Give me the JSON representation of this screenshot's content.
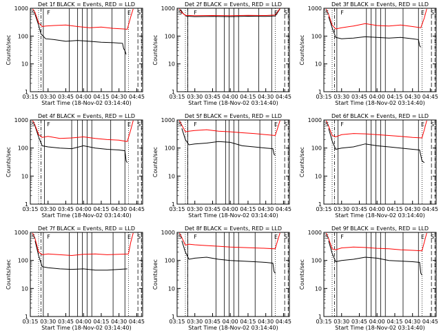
{
  "chart_data": [
    {
      "type": "line",
      "title": "Det 1f BLACK = Events, RED = LLD",
      "xlabel": "Start Time (18-Nov-02 03:14:40)",
      "ylabel": "Counts/sec",
      "y_scale": "log",
      "ylim": [
        1,
        1000
      ],
      "yticks": [
        "1",
        "10",
        "100",
        "1000"
      ],
      "xlim": [
        "03:15",
        "04:50"
      ],
      "xticks": [
        "03:15",
        "03:30",
        "03:45",
        "04:00",
        "04:15",
        "04:30",
        "04:45"
      ],
      "markers": [
        "S",
        "F",
        "E",
        "S"
      ],
      "series": [
        {
          "color": "#000000",
          "x": [
            "03:19",
            "03:22",
            "03:24",
            "03:28",
            "03:35",
            "03:45",
            "03:55",
            "04:05",
            "04:15",
            "04:25",
            "04:33",
            "04:34",
            "04:35",
            "04:36"
          ],
          "y": [
            600,
            250,
            120,
            80,
            75,
            65,
            70,
            65,
            60,
            58,
            55,
            35,
            30,
            22
          ]
        },
        {
          "color": "#ff0000",
          "x": [
            "03:17",
            "03:19",
            "03:22",
            "03:25",
            "03:28",
            "03:35",
            "03:45",
            "03:55",
            "04:05",
            "04:15",
            "04:25",
            "04:34",
            "04:37",
            "04:40",
            "04:42"
          ],
          "y": [
            950,
            700,
            300,
            220,
            230,
            240,
            250,
            220,
            200,
            210,
            190,
            180,
            175,
            500,
            950
          ]
        }
      ]
    },
    {
      "type": "line",
      "title": "Det 2f BLACK = Events, RED = LLD",
      "xlabel": "Start Time (18-Nov-02 03:14:40)",
      "ylabel": "Counts/sec",
      "y_scale": "log",
      "ylim": [
        1,
        1000
      ],
      "yticks": [
        "1",
        "10",
        "100",
        "1000"
      ],
      "xlim": [
        "03:15",
        "04:50"
      ],
      "xticks": [
        "03:15",
        "03:30",
        "03:45",
        "04:00",
        "04:15",
        "04:30",
        "04:45"
      ],
      "markers": [
        "S",
        "F",
        "E",
        "S"
      ],
      "series": [
        {
          "color": "#000000",
          "x": [
            "03:18",
            "03:20",
            "03:23",
            "03:30",
            "03:45",
            "04:00",
            "04:15",
            "04:30",
            "04:38",
            "04:40",
            "04:42"
          ],
          "y": [
            900,
            650,
            520,
            500,
            510,
            500,
            520,
            510,
            530,
            700,
            950
          ]
        },
        {
          "color": "#ff0000",
          "x": [
            "03:17",
            "03:19",
            "03:22",
            "03:30",
            "03:45",
            "04:00",
            "04:15",
            "04:30",
            "04:38",
            "04:40",
            "04:42"
          ],
          "y": [
            950,
            700,
            560,
            540,
            550,
            540,
            560,
            550,
            570,
            750,
            980
          ]
        }
      ]
    },
    {
      "type": "line",
      "title": "Det 3f BLACK = Events, RED = LLD",
      "xlabel": "Start Time (18-Nov-02 03:14:40)",
      "ylabel": "Counts/sec",
      "y_scale": "log",
      "ylim": [
        1,
        1000
      ],
      "yticks": [
        "1",
        "10",
        "100",
        "1000"
      ],
      "xlim": [
        "03:15",
        "04:50"
      ],
      "xticks": [
        "03:15",
        "03:30",
        "03:45",
        "04:00",
        "04:15",
        "04:30",
        "04:45"
      ],
      "markers": [
        "S",
        "F",
        "E",
        "S"
      ],
      "series": [
        {
          "color": "#000000",
          "x": [
            "03:19",
            "03:22",
            "03:25",
            "03:30",
            "03:40",
            "03:50",
            "04:00",
            "04:10",
            "04:20",
            "04:30",
            "04:35",
            "04:36",
            "04:37"
          ],
          "y": [
            500,
            200,
            90,
            80,
            85,
            95,
            90,
            85,
            90,
            80,
            75,
            45,
            40
          ]
        },
        {
          "color": "#ff0000",
          "x": [
            "03:17",
            "03:19",
            "03:22",
            "03:25",
            "03:30",
            "03:40",
            "03:50",
            "04:00",
            "04:10",
            "04:20",
            "04:30",
            "04:37",
            "04:40",
            "04:42"
          ],
          "y": [
            950,
            600,
            250,
            180,
            200,
            230,
            280,
            240,
            230,
            250,
            220,
            200,
            450,
            950
          ]
        }
      ]
    },
    {
      "type": "line",
      "title": "Det 4f BLACK = Events, RED = LLD",
      "xlabel": "Start Time (18-Nov-02 03:14:40)",
      "ylabel": "Counts/sec",
      "y_scale": "log",
      "ylim": [
        1,
        1000
      ],
      "yticks": [
        "1",
        "10",
        "100",
        "1000"
      ],
      "xlim": [
        "03:15",
        "04:50"
      ],
      "xticks": [
        "03:15",
        "03:30",
        "03:45",
        "04:00",
        "04:15",
        "04:30",
        "04:45"
      ],
      "markers": [
        "S",
        "F",
        "E",
        "S"
      ],
      "series": [
        {
          "color": "#000000",
          "x": [
            "03:19",
            "03:22",
            "03:25",
            "03:30",
            "03:40",
            "03:50",
            "04:00",
            "04:10",
            "04:20",
            "04:30",
            "04:35",
            "04:36",
            "04:37"
          ],
          "y": [
            600,
            250,
            120,
            110,
            100,
            95,
            120,
            100,
            90,
            85,
            80,
            35,
            30
          ]
        },
        {
          "color": "#ff0000",
          "x": [
            "03:17",
            "03:19",
            "03:22",
            "03:25",
            "03:30",
            "03:40",
            "03:50",
            "04:00",
            "04:10",
            "04:20",
            "04:30",
            "04:37",
            "04:40",
            "04:42"
          ],
          "y": [
            950,
            650,
            300,
            240,
            260,
            220,
            230,
            250,
            220,
            200,
            190,
            170,
            450,
            950
          ]
        }
      ]
    },
    {
      "type": "line",
      "title": "Det 5f BLACK = Events, RED = LLD",
      "xlabel": "Start Time (18-Nov-02 03:14:40)",
      "ylabel": "Counts/sec",
      "y_scale": "log",
      "ylim": [
        1,
        1000
      ],
      "yticks": [
        "1",
        "10",
        "100",
        "1000"
      ],
      "xlim": [
        "03:15",
        "04:50"
      ],
      "xticks": [
        "03:15",
        "03:30",
        "03:45",
        "04:00",
        "04:15",
        "04:30",
        "04:45"
      ],
      "markers": [
        "S",
        "F",
        "E",
        "S"
      ],
      "series": [
        {
          "color": "#000000",
          "x": [
            "03:19",
            "03:22",
            "03:25",
            "03:30",
            "03:40",
            "03:50",
            "04:00",
            "04:10",
            "04:20",
            "04:30",
            "04:36",
            "04:37",
            "04:38"
          ],
          "y": [
            500,
            200,
            130,
            140,
            150,
            170,
            160,
            120,
            110,
            100,
            95,
            60,
            55
          ]
        },
        {
          "color": "#ff0000",
          "x": [
            "03:17",
            "03:19",
            "03:22",
            "03:25",
            "03:30",
            "03:40",
            "03:50",
            "04:00",
            "04:10",
            "04:20",
            "04:30",
            "04:38",
            "04:40",
            "04:42"
          ],
          "y": [
            950,
            650,
            380,
            400,
            420,
            450,
            400,
            380,
            350,
            330,
            300,
            280,
            500,
            950
          ]
        }
      ]
    },
    {
      "type": "line",
      "title": "Det 6f BLACK = Events, RED = LLD",
      "xlabel": "Start Time (18-Nov-02 03:14:40)",
      "ylabel": "Counts/sec",
      "y_scale": "log",
      "ylim": [
        1,
        1000
      ],
      "yticks": [
        "1",
        "10",
        "100",
        "1000"
      ],
      "xlim": [
        "03:15",
        "04:50"
      ],
      "xticks": [
        "03:15",
        "03:30",
        "03:45",
        "04:00",
        "04:15",
        "04:30",
        "04:45"
      ],
      "markers": [
        "S",
        "F",
        "E",
        "S"
      ],
      "series": [
        {
          "color": "#000000",
          "x": [
            "03:19",
            "03:22",
            "03:25",
            "03:30",
            "03:40",
            "03:50",
            "04:00",
            "04:10",
            "04:20",
            "04:30",
            "04:36",
            "04:38",
            "04:40"
          ],
          "y": [
            500,
            180,
            90,
            100,
            110,
            140,
            120,
            110,
            100,
            90,
            85,
            35,
            30
          ]
        },
        {
          "color": "#ff0000",
          "x": [
            "03:17",
            "03:19",
            "03:22",
            "03:25",
            "03:30",
            "03:40",
            "03:50",
            "04:00",
            "04:10",
            "04:20",
            "04:30",
            "04:38",
            "04:40",
            "04:42"
          ],
          "y": [
            950,
            600,
            280,
            250,
            300,
            330,
            320,
            300,
            280,
            260,
            240,
            230,
            450,
            950
          ]
        }
      ]
    },
    {
      "type": "line",
      "title": "Det 7f BLACK = Events, RED = LLD",
      "xlabel": "Start Time (18-Nov-02 03:14:40)",
      "ylabel": "Counts/sec",
      "y_scale": "log",
      "ylim": [
        1,
        1000
      ],
      "yticks": [
        "1",
        "10",
        "100",
        "1000"
      ],
      "xlim": [
        "03:15",
        "04:50"
      ],
      "xticks": [
        "03:15",
        "03:30",
        "03:45",
        "04:00",
        "04:15",
        "04:30",
        "04:45"
      ],
      "markers": [
        "S",
        "F",
        "E",
        "S"
      ],
      "series": [
        {
          "color": "#000000",
          "x": [
            "03:19",
            "03:22",
            "03:25",
            "03:30",
            "03:40",
            "03:50",
            "04:00",
            "04:10",
            "04:20",
            "04:30",
            "04:37"
          ],
          "y": [
            500,
            150,
            60,
            55,
            50,
            48,
            50,
            45,
            45,
            48,
            50
          ]
        },
        {
          "color": "#ff0000",
          "x": [
            "03:17",
            "03:19",
            "03:22",
            "03:25",
            "03:30",
            "03:40",
            "03:50",
            "04:00",
            "04:10",
            "04:20",
            "04:30",
            "04:38",
            "04:40",
            "04:42"
          ],
          "y": [
            950,
            600,
            200,
            160,
            170,
            160,
            150,
            165,
            170,
            160,
            165,
            170,
            450,
            950
          ]
        }
      ]
    },
    {
      "type": "line",
      "title": "Det 8f BLACK = Events, RED = LLD",
      "xlabel": "Start Time (18-Nov-02 03:14:40)",
      "ylabel": "Counts/sec",
      "y_scale": "log",
      "ylim": [
        1,
        1000
      ],
      "yticks": [
        "1",
        "10",
        "100",
        "1000"
      ],
      "xlim": [
        "03:15",
        "04:50"
      ],
      "xticks": [
        "03:15",
        "03:30",
        "03:45",
        "04:00",
        "04:15",
        "04:30",
        "04:45"
      ],
      "markers": [
        "S",
        "F",
        "E",
        "S"
      ],
      "series": [
        {
          "color": "#000000",
          "x": [
            "03:19",
            "03:22",
            "03:25",
            "03:30",
            "03:40",
            "03:50",
            "04:00",
            "04:10",
            "04:20",
            "04:30",
            "04:36",
            "04:37",
            "04:38"
          ],
          "y": [
            500,
            200,
            110,
            120,
            130,
            110,
            100,
            95,
            90,
            85,
            80,
            40,
            35
          ]
        },
        {
          "color": "#ff0000",
          "x": [
            "03:17",
            "03:19",
            "03:22",
            "03:25",
            "03:30",
            "03:40",
            "03:50",
            "04:00",
            "04:10",
            "04:20",
            "04:30",
            "04:38",
            "04:40",
            "04:42"
          ],
          "y": [
            950,
            650,
            350,
            380,
            360,
            340,
            320,
            300,
            290,
            280,
            270,
            260,
            500,
            950
          ]
        }
      ]
    },
    {
      "type": "line",
      "title": "Det 9f BLACK = Events, RED = LLD",
      "xlabel": "Start Time (18-Nov-02 03:14:40)",
      "ylabel": "Counts/sec",
      "y_scale": "log",
      "ylim": [
        1,
        1000
      ],
      "yticks": [
        "1",
        "10",
        "100",
        "1000"
      ],
      "xlim": [
        "03:15",
        "04:50"
      ],
      "xticks": [
        "03:15",
        "03:30",
        "03:45",
        "04:00",
        "04:15",
        "04:30",
        "04:45"
      ],
      "markers": [
        "S",
        "F",
        "E",
        "S"
      ],
      "series": [
        {
          "color": "#000000",
          "x": [
            "03:19",
            "03:22",
            "03:25",
            "03:30",
            "03:40",
            "03:50",
            "04:00",
            "04:10",
            "04:20",
            "04:30",
            "04:36",
            "04:37",
            "04:38"
          ],
          "y": [
            500,
            180,
            90,
            100,
            110,
            130,
            120,
            100,
            95,
            90,
            85,
            35,
            30
          ]
        },
        {
          "color": "#ff0000",
          "x": [
            "03:17",
            "03:19",
            "03:22",
            "03:25",
            "03:30",
            "03:40",
            "03:50",
            "04:00",
            "04:10",
            "04:20",
            "04:30",
            "04:38",
            "04:40",
            "04:42"
          ],
          "y": [
            950,
            600,
            260,
            240,
            280,
            300,
            290,
            270,
            260,
            240,
            230,
            220,
            450,
            950
          ]
        }
      ]
    }
  ],
  "vlines": {
    "dotted": [
      "03:22",
      "04:38"
    ],
    "dashdot": [
      "03:24"
    ],
    "dashed": [
      "04:46",
      "04:49"
    ],
    "solid_sets": [
      [
        "03:26",
        "03:48",
        "03:55",
        "03:59",
        "04:03",
        "04:07",
        "04:24",
        "04:35"
      ],
      [
        "03:24",
        "03:48",
        "03:55",
        "03:59",
        "04:03",
        "04:07",
        "04:24",
        "04:35"
      ],
      [
        "03:26",
        "03:51",
        "03:55",
        "03:59",
        "04:03",
        "04:07",
        "04:22",
        "04:35"
      ],
      [
        "03:27",
        "03:50",
        "03:55",
        "03:59",
        "04:03",
        "04:07",
        "04:23",
        "04:35"
      ],
      [
        "03:24",
        "03:48",
        "03:56",
        "03:59",
        "04:03",
        "04:07",
        "04:25",
        "04:35"
      ],
      [
        "03:27",
        "03:51",
        "03:55",
        "03:59",
        "04:03",
        "04:07",
        "04:22",
        "04:35"
      ],
      [
        "03:26",
        "03:48",
        "03:55",
        "03:59",
        "04:03",
        "04:07",
        "04:25",
        "04:35"
      ],
      [
        "03:24",
        "03:48",
        "03:55",
        "03:59",
        "04:03",
        "04:07",
        "04:21",
        "04:35"
      ],
      [
        "03:26",
        "03:51",
        "03:55",
        "03:59",
        "04:03",
        "04:07",
        "04:22",
        "04:35"
      ]
    ]
  }
}
